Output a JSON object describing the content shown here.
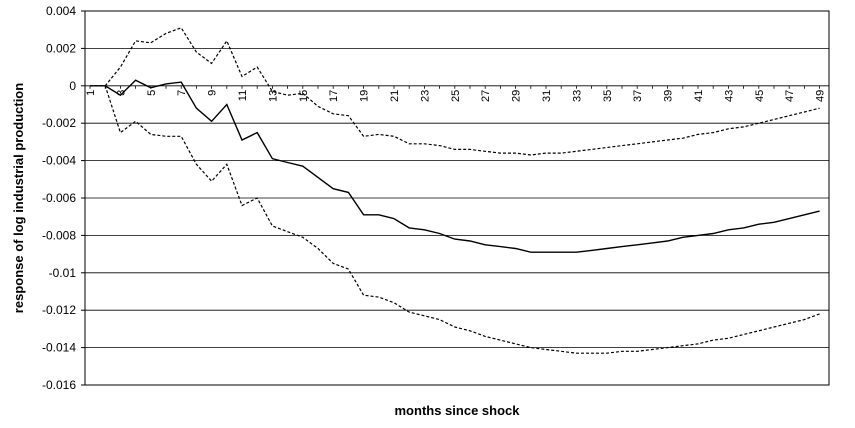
{
  "chart_data": {
    "type": "line",
    "title": "",
    "xlabel": "months since shock",
    "ylabel": "response of log industrial production",
    "ylim": [
      -0.016,
      0.004
    ],
    "yticks": [
      0.004,
      0.002,
      0,
      -0.002,
      -0.004,
      -0.006,
      -0.008,
      -0.01,
      -0.012,
      -0.014,
      -0.016
    ],
    "ytick_labels": [
      "0.004",
      "0.002",
      "0",
      "-0.002",
      "-0.004",
      "-0.006",
      "-0.008",
      "-0.01",
      "-0.012",
      "-0.014",
      "-0.016"
    ],
    "xtick_labels": [
      "1",
      "3",
      "5",
      "7",
      "9",
      "11",
      "13",
      "15",
      "17",
      "19",
      "21",
      "23",
      "25",
      "27",
      "29",
      "31",
      "33",
      "35",
      "37",
      "39",
      "41",
      "43",
      "45",
      "47",
      "49"
    ],
    "grid": "horizontal",
    "legend": "none",
    "x": [
      1,
      2,
      3,
      4,
      5,
      6,
      7,
      8,
      9,
      10,
      11,
      12,
      13,
      14,
      15,
      16,
      17,
      18,
      19,
      20,
      21,
      22,
      23,
      24,
      25,
      26,
      27,
      28,
      29,
      30,
      31,
      32,
      33,
      34,
      35,
      36,
      37,
      38,
      39,
      40,
      41,
      42,
      43,
      44,
      45,
      46,
      47,
      48,
      49
    ],
    "series": [
      {
        "style": "solid",
        "values": [
          0,
          0,
          -0.0005,
          0.0003,
          -0.0001,
          0.0001,
          0.0002,
          -0.0012,
          -0.0019,
          -0.001,
          -0.0029,
          -0.0025,
          -0.0039,
          -0.0041,
          -0.0043,
          -0.0049,
          -0.0055,
          -0.0057,
          -0.0069,
          -0.0069,
          -0.0071,
          -0.0076,
          -0.0077,
          -0.0079,
          -0.0082,
          -0.0083,
          -0.0085,
          -0.0086,
          -0.0087,
          -0.0089,
          -0.0089,
          -0.0089,
          -0.0089,
          -0.0088,
          -0.0087,
          -0.0086,
          -0.0085,
          -0.0084,
          -0.0083,
          -0.0081,
          -0.008,
          -0.0079,
          -0.0077,
          -0.0076,
          -0.0074,
          -0.0073,
          -0.0071,
          -0.0069,
          -0.0067
        ]
      },
      {
        "style": "dashed",
        "values": [
          0,
          0,
          0.001,
          0.0024,
          0.0023,
          0.0028,
          0.0031,
          0.0018,
          0.0012,
          0.0024,
          0.0005,
          0.001,
          -0.0003,
          -0.0005,
          -0.0004,
          -0.0011,
          -0.0015,
          -0.0016,
          -0.0027,
          -0.0026,
          -0.0027,
          -0.0031,
          -0.0031,
          -0.0032,
          -0.0034,
          -0.0034,
          -0.0035,
          -0.0036,
          -0.0036,
          -0.0037,
          -0.0036,
          -0.0036,
          -0.0035,
          -0.0034,
          -0.0033,
          -0.0032,
          -0.0031,
          -0.003,
          -0.0029,
          -0.0028,
          -0.0026,
          -0.0025,
          -0.0023,
          -0.0022,
          -0.002,
          -0.0018,
          -0.0016,
          -0.0014,
          -0.0012
        ]
      },
      {
        "style": "dashed",
        "values": [
          0,
          0,
          -0.0025,
          -0.0019,
          -0.0026,
          -0.0027,
          -0.0027,
          -0.0042,
          -0.0051,
          -0.0042,
          -0.0064,
          -0.006,
          -0.0075,
          -0.0078,
          -0.0081,
          -0.0087,
          -0.0095,
          -0.0098,
          -0.0112,
          -0.0113,
          -0.0116,
          -0.0121,
          -0.0123,
          -0.0125,
          -0.0129,
          -0.0131,
          -0.0134,
          -0.0136,
          -0.0138,
          -0.014,
          -0.0141,
          -0.0142,
          -0.0143,
          -0.0143,
          -0.0143,
          -0.0142,
          -0.0142,
          -0.0141,
          -0.014,
          -0.0139,
          -0.0138,
          -0.0136,
          -0.0135,
          -0.0133,
          -0.0131,
          -0.0129,
          -0.0127,
          -0.0125,
          -0.0122
        ]
      }
    ]
  }
}
